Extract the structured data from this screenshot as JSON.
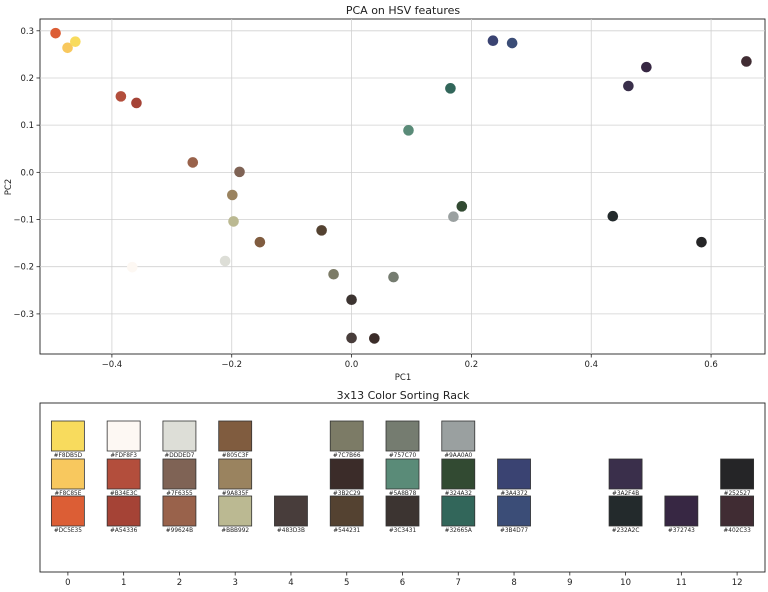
{
  "chart_data": [
    {
      "type": "scatter",
      "title": "PCA on HSV features",
      "xlabel": "PC1",
      "ylabel": "PC2",
      "xlim": [
        -0.52,
        0.69
      ],
      "ylim": [
        -0.385,
        0.325
      ],
      "xticks": [
        -0.4,
        -0.2,
        0.0,
        0.2,
        0.4,
        0.6
      ],
      "xtick_labels": [
        "−0.4",
        "−0.2",
        "0.0",
        "0.2",
        "0.4",
        "0.6"
      ],
      "yticks": [
        -0.3,
        -0.2,
        -0.1,
        0.0,
        0.1,
        0.2,
        0.3
      ],
      "ytick_labels": [
        "−0.3",
        "−0.2",
        "−0.1",
        "0.0",
        "0.1",
        "0.2",
        "0.3"
      ],
      "grid": true,
      "points": [
        {
          "x": -0.494,
          "y": 0.295,
          "color": "#DC5E35"
        },
        {
          "x": -0.474,
          "y": 0.264,
          "color": "#F8C85E"
        },
        {
          "x": -0.461,
          "y": 0.277,
          "color": "#F8DB5D"
        },
        {
          "x": -0.385,
          "y": 0.161,
          "color": "#B34E3C"
        },
        {
          "x": -0.359,
          "y": 0.147,
          "color": "#A54336"
        },
        {
          "x": -0.366,
          "y": -0.201,
          "color": "#FDF8F3"
        },
        {
          "x": -0.265,
          "y": 0.021,
          "color": "#99624B"
        },
        {
          "x": -0.187,
          "y": 0.001,
          "color": "#7F6355"
        },
        {
          "x": -0.199,
          "y": -0.048,
          "color": "#9A835F"
        },
        {
          "x": -0.197,
          "y": -0.104,
          "color": "#BBB992"
        },
        {
          "x": -0.211,
          "y": -0.188,
          "color": "#DDDED7"
        },
        {
          "x": -0.153,
          "y": -0.148,
          "color": "#805C3F"
        },
        {
          "x": -0.05,
          "y": -0.123,
          "color": "#544231"
        },
        {
          "x": -0.03,
          "y": -0.216,
          "color": "#7C7B66"
        },
        {
          "x": 0.0,
          "y": -0.27,
          "color": "#3C3431"
        },
        {
          "x": 0.0,
          "y": -0.351,
          "color": "#483D3B"
        },
        {
          "x": 0.038,
          "y": -0.352,
          "color": "#3B2C29"
        },
        {
          "x": 0.07,
          "y": -0.222,
          "color": "#757C70"
        },
        {
          "x": 0.095,
          "y": 0.089,
          "color": "#5A8B78"
        },
        {
          "x": 0.165,
          "y": 0.178,
          "color": "#32665A"
        },
        {
          "x": 0.17,
          "y": -0.094,
          "color": "#9AA0A0"
        },
        {
          "x": 0.184,
          "y": -0.072,
          "color": "#324A32"
        },
        {
          "x": 0.236,
          "y": 0.279,
          "color": "#3A4372"
        },
        {
          "x": 0.268,
          "y": 0.274,
          "color": "#3B4D77"
        },
        {
          "x": 0.436,
          "y": -0.093,
          "color": "#232A2C"
        },
        {
          "x": 0.462,
          "y": 0.183,
          "color": "#3A2F4B"
        },
        {
          "x": 0.492,
          "y": 0.223,
          "color": "#372743"
        },
        {
          "x": 0.584,
          "y": -0.148,
          "color": "#252527"
        },
        {
          "x": 0.659,
          "y": 0.235,
          "color": "#402C33"
        }
      ]
    },
    {
      "type": "table",
      "title": "3x13 Color Sorting Rack",
      "xticks": [
        0,
        1,
        2,
        3,
        4,
        5,
        6,
        7,
        8,
        9,
        10,
        11,
        12
      ],
      "xtick_labels": [
        "0",
        "1",
        "2",
        "3",
        "4",
        "5",
        "6",
        "7",
        "8",
        "9",
        "10",
        "11",
        "12"
      ],
      "xlim": [
        -0.5,
        12.5
      ],
      "swatches": [
        {
          "col": 0,
          "row": 0,
          "color": "#F8DB5D",
          "label": "#F8DB5D"
        },
        {
          "col": 1,
          "row": 0,
          "color": "#FDF8F3",
          "label": "#FDF8F3"
        },
        {
          "col": 2,
          "row": 0,
          "color": "#DDDED7",
          "label": "#DDDED7"
        },
        {
          "col": 3,
          "row": 0,
          "color": "#805C3F",
          "label": "#805C3F"
        },
        {
          "col": 5,
          "row": 0,
          "color": "#7C7B66",
          "label": "#7C7B66"
        },
        {
          "col": 6,
          "row": 0,
          "color": "#757C70",
          "label": "#757C70"
        },
        {
          "col": 7,
          "row": 0,
          "color": "#9AA0A0",
          "label": "#9AA0A0"
        },
        {
          "col": 0,
          "row": 1,
          "color": "#F8C85E",
          "label": "#F8C85E"
        },
        {
          "col": 1,
          "row": 1,
          "color": "#B34E3C",
          "label": "#B34E3C"
        },
        {
          "col": 2,
          "row": 1,
          "color": "#7F6355",
          "label": "#7F6355"
        },
        {
          "col": 3,
          "row": 1,
          "color": "#9A835F",
          "label": "#9A835F"
        },
        {
          "col": 5,
          "row": 1,
          "color": "#3B2C29",
          "label": "#3B2C29"
        },
        {
          "col": 6,
          "row": 1,
          "color": "#5A8B78",
          "label": "#5A8B78"
        },
        {
          "col": 7,
          "row": 1,
          "color": "#324A32",
          "label": "#324A32"
        },
        {
          "col": 8,
          "row": 1,
          "color": "#3A4372",
          "label": "#3A4372"
        },
        {
          "col": 10,
          "row": 1,
          "color": "#3A2F4B",
          "label": "#3A2F4B"
        },
        {
          "col": 12,
          "row": 1,
          "color": "#252527",
          "label": "#252527"
        },
        {
          "col": 0,
          "row": 2,
          "color": "#DC5E35",
          "label": "#DC5E35"
        },
        {
          "col": 1,
          "row": 2,
          "color": "#A54336",
          "label": "#A54336"
        },
        {
          "col": 2,
          "row": 2,
          "color": "#99624B",
          "label": "#99624B"
        },
        {
          "col": 3,
          "row": 2,
          "color": "#BBB992",
          "label": "#BBB992"
        },
        {
          "col": 4,
          "row": 2,
          "color": "#483D3B",
          "label": "#483D3B"
        },
        {
          "col": 5,
          "row": 2,
          "color": "#544231",
          "label": "#544231"
        },
        {
          "col": 6,
          "row": 2,
          "color": "#3C3431",
          "label": "#3C3431"
        },
        {
          "col": 7,
          "row": 2,
          "color": "#32665A",
          "label": "#32665A"
        },
        {
          "col": 8,
          "row": 2,
          "color": "#3B4D77",
          "label": "#3B4D77"
        },
        {
          "col": 10,
          "row": 2,
          "color": "#232A2C",
          "label": "#232A2C"
        },
        {
          "col": 11,
          "row": 2,
          "color": "#372743",
          "label": "#372743"
        },
        {
          "col": 12,
          "row": 2,
          "color": "#402C33",
          "label": "#402C33"
        }
      ]
    }
  ]
}
